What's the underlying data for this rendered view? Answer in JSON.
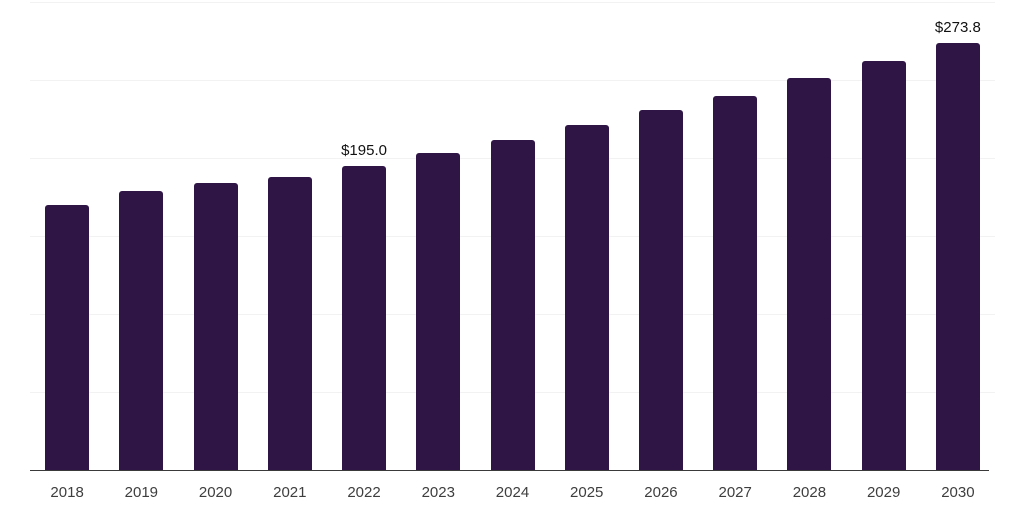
{
  "chart_data": {
    "type": "bar",
    "title": "",
    "xlabel": "",
    "ylabel": "",
    "categories": [
      "2018",
      "2019",
      "2020",
      "2021",
      "2022",
      "2023",
      "2024",
      "2025",
      "2026",
      "2027",
      "2028",
      "2029",
      "2030"
    ],
    "values": [
      170,
      179,
      184,
      188,
      195.0,
      203.5,
      211.5,
      221,
      230.5,
      240,
      251,
      262,
      273.8
    ],
    "value_labels": {
      "2022": "$195.0",
      "2030": "$273.8"
    },
    "ylim": [
      0,
      300
    ],
    "grid_step": 50,
    "grid": "horizontal gridlines only, no y-axis tick labels, no y-axis line",
    "legend": "none",
    "colors": {
      "bar": "#2f1446",
      "axis_line": "#3a3a3a",
      "gridline": "#f2f2f3",
      "tick_label": "#3e3e3e",
      "value_label": "#111111",
      "background": "#ffffff"
    }
  }
}
